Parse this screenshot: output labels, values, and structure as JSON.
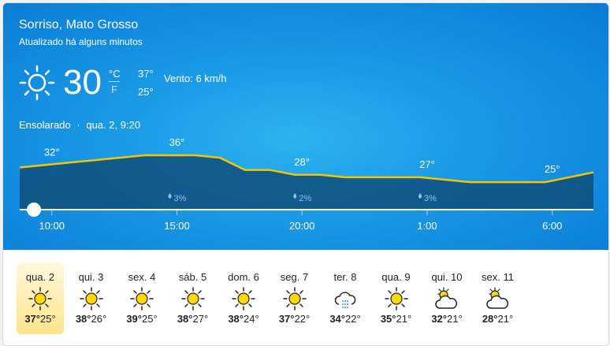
{
  "header": {
    "location": "Sorriso, Mato Grosso",
    "updated": "Atualizado há alguns minutos"
  },
  "current": {
    "icon": "sun-icon",
    "temp": "30",
    "unit_c": "°C",
    "unit_f": "F",
    "high": "37°",
    "low": "25°",
    "wind": "Vento: 6 km/h",
    "condition": "Ensolarado",
    "separator": "·",
    "datetime": "qua. 2, 9:20"
  },
  "colors": {
    "line": "#f5c400",
    "fill": "#0f4f7c",
    "panel": "#1a9ae6",
    "selected": "#fde48a"
  },
  "chart_data": {
    "type": "area",
    "x": [
      "9:00",
      "10:00",
      "11:00",
      "12:00",
      "13:00",
      "14:00",
      "15:00",
      "16:00",
      "17:00",
      "18:00",
      "19:00",
      "20:00",
      "21:00",
      "22:00",
      "23:00",
      "0:00",
      "1:00",
      "2:00",
      "3:00",
      "4:00",
      "5:00",
      "6:00",
      "7:00"
    ],
    "values": [
      31,
      32,
      33,
      34,
      35,
      36,
      36,
      36,
      35,
      30,
      30,
      28,
      28,
      27,
      27,
      27,
      27,
      26,
      25,
      25,
      25,
      25,
      29
    ],
    "xticks": [
      "10:00",
      "15:00",
      "20:00",
      "1:00",
      "6:00"
    ],
    "temp_labels": [
      {
        "x": "10:00",
        "label": "32°"
      },
      {
        "x": "15:00",
        "label": "36°"
      },
      {
        "x": "20:00",
        "label": "28°"
      },
      {
        "x": "1:00",
        "label": "27°"
      },
      {
        "x": "6:00",
        "label": "25°"
      }
    ],
    "precip_labels": [
      {
        "x": "15:00",
        "label": "3%"
      },
      {
        "x": "20:00",
        "label": "2%"
      },
      {
        "x": "1:00",
        "label": "3%"
      }
    ],
    "slider_position": "9:20"
  },
  "days": [
    {
      "name": "qua. 2",
      "icon": "sun",
      "high": "37°",
      "low": "25°",
      "selected": true
    },
    {
      "name": "qui. 3",
      "icon": "sun",
      "high": "38°",
      "low": "26°"
    },
    {
      "name": "sex. 4",
      "icon": "sun",
      "high": "39°",
      "low": "25°"
    },
    {
      "name": "sáb. 5",
      "icon": "sun",
      "high": "38°",
      "low": "27°"
    },
    {
      "name": "dom. 6",
      "icon": "sun",
      "high": "38°",
      "low": "24°"
    },
    {
      "name": "seg. 7",
      "icon": "sun",
      "high": "37°",
      "low": "22°"
    },
    {
      "name": "ter. 8",
      "icon": "rain",
      "high": "34°",
      "low": "22°"
    },
    {
      "name": "qua. 9",
      "icon": "sun",
      "high": "35°",
      "low": "21°"
    },
    {
      "name": "qui. 10",
      "icon": "partly",
      "high": "32°",
      "low": "21°"
    },
    {
      "name": "sex. 11",
      "icon": "partly",
      "high": "28°",
      "low": "21°"
    }
  ]
}
